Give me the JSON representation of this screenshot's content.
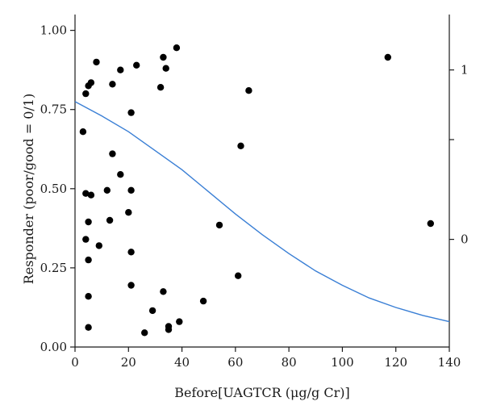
{
  "chart_data": {
    "type": "scatter",
    "title": "",
    "xlabel": "Before[UAGTCR (μg/g Cr)]",
    "ylabel": "Responder (poor/good = 0/1)",
    "xlim": [
      0,
      140
    ],
    "ylim": [
      0,
      1.05
    ],
    "x_ticks": [
      "0",
      "20",
      "40",
      "60",
      "80",
      "100",
      "120",
      "140"
    ],
    "y_ticks": [
      "0.00",
      "0.25",
      "0.50",
      "0.75",
      "1.00"
    ],
    "right_axis_ticks": [
      "1",
      "0"
    ],
    "grid": false,
    "legend": "none",
    "colors": {
      "points": "#000000",
      "fit": "#3a7fd5",
      "axes": "#1a1a1a"
    },
    "points": [
      [
        8,
        0.9
      ],
      [
        17,
        0.875
      ],
      [
        23,
        0.89
      ],
      [
        33,
        0.915
      ],
      [
        38,
        0.945
      ],
      [
        34,
        0.88
      ],
      [
        117,
        0.915
      ],
      [
        6,
        0.835
      ],
      [
        5,
        0.825
      ],
      [
        14,
        0.83
      ],
      [
        32,
        0.82
      ],
      [
        4,
        0.8
      ],
      [
        65,
        0.81
      ],
      [
        21,
        0.74
      ],
      [
        3,
        0.68
      ],
      [
        62,
        0.635
      ],
      [
        14,
        0.61
      ],
      [
        17,
        0.545
      ],
      [
        4,
        0.485
      ],
      [
        6,
        0.48
      ],
      [
        12,
        0.495
      ],
      [
        21,
        0.495
      ],
      [
        20,
        0.425
      ],
      [
        5,
        0.395
      ],
      [
        13,
        0.4
      ],
      [
        133,
        0.39
      ],
      [
        54,
        0.385
      ],
      [
        4,
        0.34
      ],
      [
        9,
        0.32
      ],
      [
        21,
        0.3
      ],
      [
        5,
        0.275
      ],
      [
        61,
        0.225
      ],
      [
        21,
        0.195
      ],
      [
        33,
        0.175
      ],
      [
        5,
        0.16
      ],
      [
        48,
        0.145
      ],
      [
        29,
        0.115
      ],
      [
        39,
        0.08
      ],
      [
        35,
        0.065
      ],
      [
        5,
        0.062
      ],
      [
        26,
        0.045
      ],
      [
        35,
        0.055
      ]
    ],
    "fit_curve": {
      "name": "",
      "x": [
        0,
        10,
        20,
        30,
        40,
        50,
        60,
        70,
        80,
        90,
        100,
        110,
        120,
        130,
        140
      ],
      "y": [
        0.775,
        0.73,
        0.68,
        0.62,
        0.56,
        0.49,
        0.42,
        0.355,
        0.295,
        0.24,
        0.195,
        0.155,
        0.125,
        0.1,
        0.08
      ]
    }
  }
}
